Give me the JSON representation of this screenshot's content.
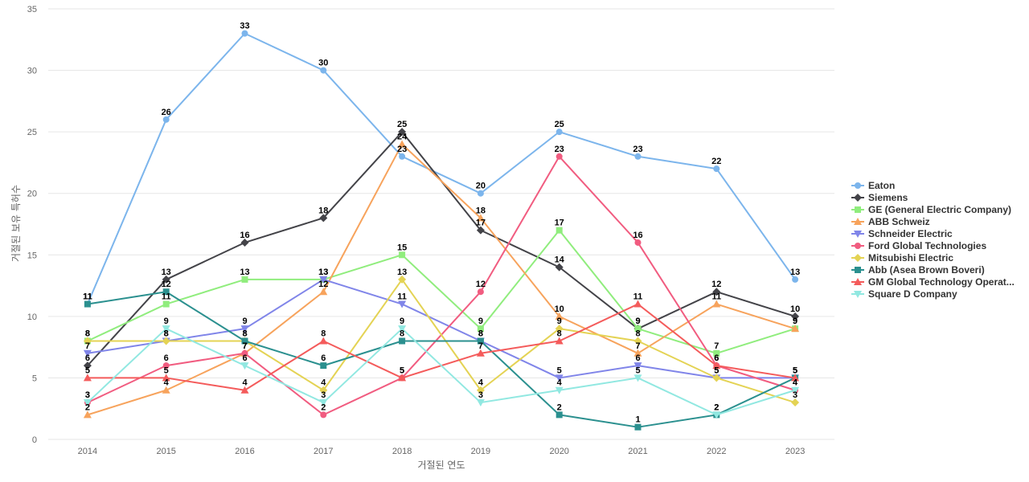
{
  "chart_data": {
    "type": "line",
    "title": "",
    "xlabel": "거절된 연도",
    "ylabel": "거절된 보유 특허수",
    "x": [
      "2014",
      "2015",
      "2016",
      "2017",
      "2018",
      "2019",
      "2020",
      "2021",
      "2022",
      "2023"
    ],
    "ylim": [
      0,
      35
    ],
    "yticks": [
      0,
      5,
      10,
      15,
      20,
      25,
      30,
      35
    ],
    "grid": true,
    "legend_position": "right",
    "series": [
      {
        "name": "Eaton",
        "color": "#7cb5ec",
        "marker": "circle",
        "values": [
          11,
          26,
          33,
          30,
          23,
          20,
          25,
          23,
          22,
          13
        ]
      },
      {
        "name": "Siemens",
        "color": "#434348",
        "marker": "diamond",
        "values": [
          6,
          13,
          16,
          18,
          25,
          17,
          14,
          9,
          12,
          10
        ]
      },
      {
        "name": "GE (General Electric Company)",
        "color": "#90ed7d",
        "marker": "square",
        "values": [
          8,
          11,
          13,
          13,
          15,
          9,
          17,
          9,
          7,
          9
        ]
      },
      {
        "name": "ABB Schweiz",
        "color": "#f7a35c",
        "marker": "triangle",
        "values": [
          2,
          4,
          7,
          12,
          24,
          18,
          10,
          7,
          11,
          9
        ]
      },
      {
        "name": "Schneider Electric",
        "color": "#8085e9",
        "marker": "triangle-down",
        "values": [
          7,
          8,
          9,
          13,
          11,
          8,
          5,
          6,
          5,
          5
        ]
      },
      {
        "name": "Ford Global Technologies",
        "color": "#f15c80",
        "marker": "circle",
        "values": [
          3,
          6,
          7,
          2,
          5,
          12,
          23,
          16,
          6,
          4
        ]
      },
      {
        "name": "Mitsubishi Electric",
        "color": "#e4d354",
        "marker": "diamond",
        "values": [
          8,
          8,
          8,
          4,
          13,
          4,
          9,
          8,
          5,
          3
        ]
      },
      {
        "name": "Abb (Asea Brown Boveri)",
        "color": "#2b908f",
        "marker": "square",
        "values": [
          11,
          12,
          8,
          6,
          8,
          8,
          2,
          1,
          2,
          5
        ]
      },
      {
        "name": "GM Global Technology Operat...",
        "color": "#f45b5b",
        "marker": "triangle",
        "values": [
          5,
          5,
          4,
          8,
          5,
          7,
          8,
          11,
          6,
          5
        ]
      },
      {
        "name": "Square D Company",
        "color": "#91e8e1",
        "marker": "triangle-down",
        "values": [
          3,
          9,
          6,
          3,
          9,
          3,
          4,
          5,
          2,
          4
        ]
      }
    ]
  }
}
